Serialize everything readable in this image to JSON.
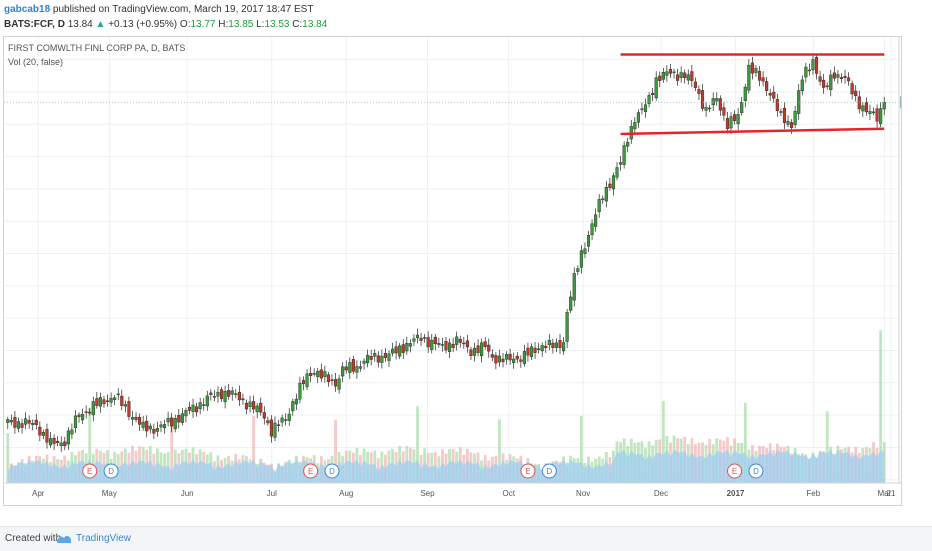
{
  "header": {
    "author": "gabcab18",
    "published": "published on TradingView.com, March 19, 2017 18:47 EST",
    "symbol": "BATS:FCF, D",
    "last": "13.84",
    "change": "+0.13 (+0.95%)",
    "o_label": "O:",
    "o": "13.77",
    "h_label": "H:",
    "h": "13.85",
    "l_label": "L:",
    "l": "13.53",
    "c_label": "C:",
    "c": "13.84"
  },
  "footer": {
    "created": "Created with",
    "brand": "TradingView"
  },
  "colors": {
    "up": "#3a9b3a",
    "down": "#c0392b",
    "trend": "#e8232a",
    "volume": "#9fcdf0",
    "grid": "#eef0f2",
    "price_badge": "#8fb8ac"
  },
  "icons": [
    "tradingview-logo-icon"
  ],
  "chart_data": {
    "type": "candlestick",
    "title": "FIRST COMWLTH FINL CORP PA, D, BATS",
    "indicator": "Vol (20, false)",
    "y_ticks": [
      "8.00",
      "8.50",
      "9.00",
      "9.50",
      "10.00",
      "10.50",
      "11.00",
      "11.50",
      "12.00",
      "12.50",
      "13.00",
      "13.50",
      "14.00",
      "14.50"
    ],
    "ylim": [
      7.95,
      14.85
    ],
    "x_labels": [
      "Apr",
      "May",
      "Jun",
      "Jul",
      "Aug",
      "Sep",
      "Oct",
      "Nov",
      "Dec",
      "2017",
      "Feb",
      "Mar",
      "21"
    ],
    "last_price_label": "13.84",
    "last_price": 13.84,
    "close_anchors": [
      [
        0,
        8.9
      ],
      [
        8,
        8.85
      ],
      [
        12,
        8.55
      ],
      [
        16,
        8.6
      ],
      [
        20,
        9.0
      ],
      [
        26,
        9.2
      ],
      [
        30,
        9.3
      ],
      [
        34,
        9.05
      ],
      [
        38,
        8.8
      ],
      [
        42,
        8.8
      ],
      [
        46,
        8.9
      ],
      [
        52,
        9.1
      ],
      [
        56,
        9.25
      ],
      [
        60,
        9.35
      ],
      [
        64,
        9.3
      ],
      [
        68,
        9.15
      ],
      [
        72,
        9.0
      ],
      [
        74,
        8.75
      ],
      [
        78,
        8.95
      ],
      [
        80,
        9.2
      ],
      [
        82,
        9.4
      ],
      [
        84,
        9.6
      ],
      [
        86,
        9.7
      ],
      [
        88,
        9.6
      ],
      [
        92,
        9.5
      ],
      [
        94,
        9.7
      ],
      [
        98,
        9.75
      ],
      [
        100,
        9.85
      ],
      [
        104,
        9.9
      ],
      [
        108,
        9.95
      ],
      [
        112,
        10.1
      ],
      [
        116,
        10.2
      ],
      [
        118,
        10.15
      ],
      [
        122,
        10.05
      ],
      [
        126,
        10.15
      ],
      [
        130,
        10.0
      ],
      [
        134,
        10.05
      ],
      [
        136,
        9.9
      ],
      [
        140,
        9.85
      ],
      [
        144,
        9.9
      ],
      [
        148,
        10.0
      ],
      [
        150,
        10.1
      ],
      [
        154,
        10.05
      ],
      [
        156,
        10.15
      ],
      [
        157,
        10.6
      ],
      [
        159,
        11.1
      ],
      [
        161,
        11.5
      ],
      [
        163,
        11.8
      ],
      [
        165,
        12.1
      ],
      [
        167,
        12.4
      ],
      [
        169,
        12.6
      ],
      [
        172,
        12.9
      ],
      [
        174,
        13.3
      ],
      [
        176,
        13.6
      ],
      [
        178,
        13.7
      ],
      [
        180,
        13.9
      ],
      [
        182,
        14.2
      ],
      [
        186,
        14.3
      ],
      [
        190,
        14.25
      ],
      [
        193,
        14.1
      ],
      [
        196,
        13.7
      ],
      [
        199,
        13.9
      ],
      [
        202,
        13.5
      ],
      [
        205,
        13.6
      ],
      [
        208,
        14.4
      ],
      [
        211,
        14.2
      ],
      [
        214,
        14.0
      ],
      [
        217,
        13.6
      ],
      [
        220,
        13.5
      ],
      [
        223,
        14.2
      ],
      [
        226,
        14.5
      ],
      [
        229,
        14.0
      ],
      [
        232,
        14.3
      ],
      [
        235,
        14.2
      ],
      [
        238,
        13.9
      ],
      [
        241,
        13.7
      ],
      [
        244,
        13.6
      ],
      [
        246,
        13.84
      ]
    ],
    "trendlines": [
      {
        "name": "resistance",
        "from": [
          172,
          14.58
        ],
        "to": [
          246,
          14.58
        ]
      },
      {
        "name": "support",
        "from": [
          172,
          13.35
        ],
        "to": [
          246,
          13.43
        ]
      }
    ],
    "earnings_markers": [
      {
        "label": "E",
        "bar": 23
      },
      {
        "label": "D",
        "bar": 29
      },
      {
        "label": "E",
        "bar": 85
      },
      {
        "label": "D",
        "bar": 91
      },
      {
        "label": "E",
        "bar": 146
      },
      {
        "label": "D",
        "bar": 152
      },
      {
        "label": "E",
        "bar": 204
      },
      {
        "label": "D",
        "bar": 210
      }
    ]
  }
}
